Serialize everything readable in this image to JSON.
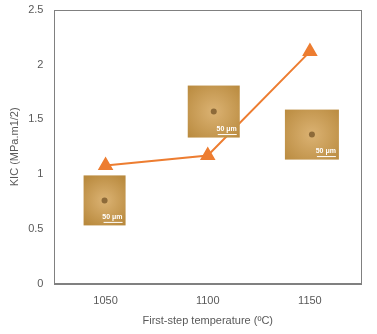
{
  "chart_data": {
    "type": "line",
    "x_label": "First-step temperature (ºC)",
    "y_label": "KIC (MPa.m1/2)",
    "categories": [
      "1050",
      "1100",
      "1150"
    ],
    "values": [
      1.08,
      1.17,
      2.12
    ],
    "color": "#ed7d31",
    "marker": "triangle",
    "line_style": "solid",
    "ylim": [
      0,
      2.5
    ],
    "yticks": [
      0,
      0.5,
      1,
      1.5,
      2,
      2.5
    ],
    "grid": false,
    "annotations": [
      "50 μm",
      "50 μm",
      "50 μm"
    ]
  }
}
